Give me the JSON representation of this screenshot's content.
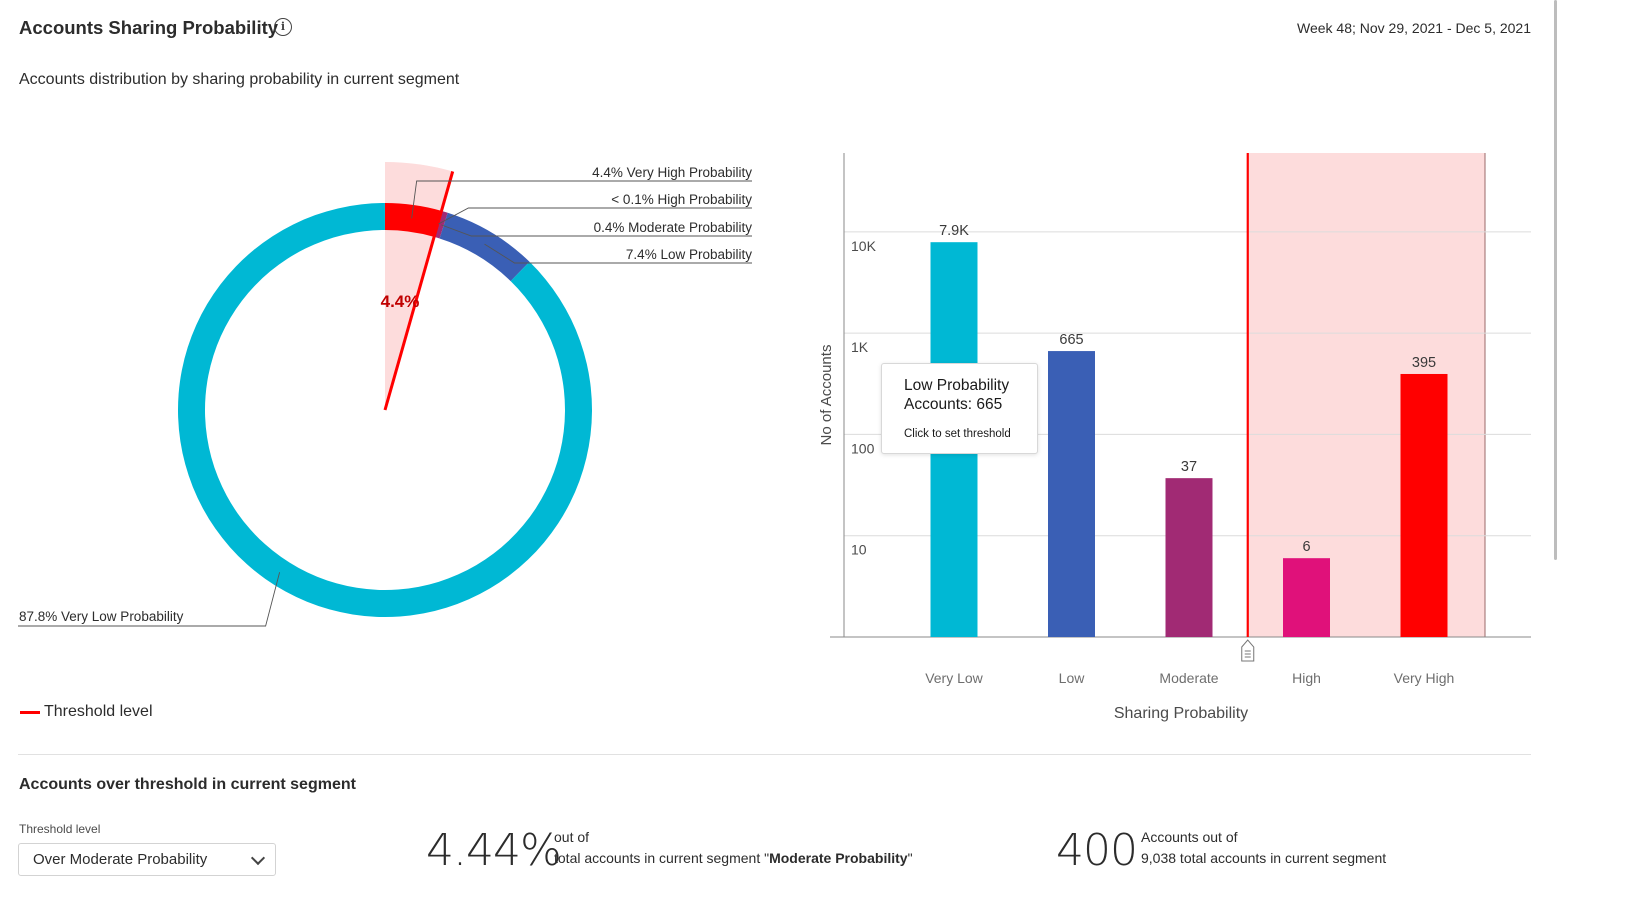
{
  "header": {
    "title": "Accounts Sharing Probability",
    "info_icon": "info-circle-icon",
    "date_range": "Week 48; Nov 29, 2021 - Dec 5, 2021",
    "subtitle": "Accounts distribution by sharing probability in current segment"
  },
  "colors": {
    "very_low": "#00b8d4",
    "low": "#3a5fb5",
    "moderate": "#a12a74",
    "high": "#e0117a",
    "very_high": "#ff0000",
    "threshold": "#ff0000",
    "threshold_zone": "#fddcdc"
  },
  "donut": {
    "center_label": "4.4%",
    "labels": {
      "very_high": "4.4% Very High Probability",
      "high": "< 0.1% High Probability",
      "moderate": "0.4% Moderate Probability",
      "low": "7.4% Low Probability",
      "very_low": "87.8% Very Low Probability"
    }
  },
  "chart_data": [
    {
      "type": "pie",
      "style": "donut",
      "series": [
        {
          "category": "Very High",
          "percent": 4.4
        },
        {
          "category": "High",
          "percent": 0.1
        },
        {
          "category": "Moderate",
          "percent": 0.4
        },
        {
          "category": "Low",
          "percent": 7.4
        },
        {
          "category": "Very Low",
          "percent": 87.8
        }
      ],
      "threshold_percent": 4.4
    },
    {
      "type": "bar",
      "xlabel": "Sharing Probability",
      "ylabel": "No of Accounts",
      "yscale": "log",
      "ylim": [
        1,
        60000
      ],
      "yticks": [
        {
          "value": 10,
          "label": "10"
        },
        {
          "value": 100,
          "label": "100"
        },
        {
          "value": 1000,
          "label": "1K"
        },
        {
          "value": 10000,
          "label": "10K"
        }
      ],
      "categories": [
        "Very Low",
        "Low",
        "Moderate",
        "High",
        "Very High"
      ],
      "values": [
        7900,
        665,
        37,
        6,
        395
      ],
      "value_labels": [
        "7.9K",
        "665",
        "37",
        "6",
        "395"
      ],
      "threshold_after_category": "Moderate",
      "grid": true
    }
  ],
  "tooltip": {
    "line1": "Low Probability",
    "line2": "Accounts: 665",
    "hint": "Click to set threshold"
  },
  "threshold_handle_icon": "drag-handle-icon",
  "legend": {
    "threshold_label": "Threshold level"
  },
  "summary": {
    "title": "Accounts over threshold in current segment",
    "threshold_field_label": "Threshold level",
    "threshold_value": "Over Moderate Probability",
    "dropdown_icon": "chevron-down-icon",
    "percent_value": "4.44%",
    "percent_out_of": "out of",
    "percent_desc_prefix": "total accounts in current segment \"",
    "percent_desc_bold": "Moderate Probability",
    "percent_desc_suffix": "\"",
    "count_value": "400",
    "count_line1": "Accounts out of",
    "count_line2": "9,038 total accounts in current segment"
  }
}
